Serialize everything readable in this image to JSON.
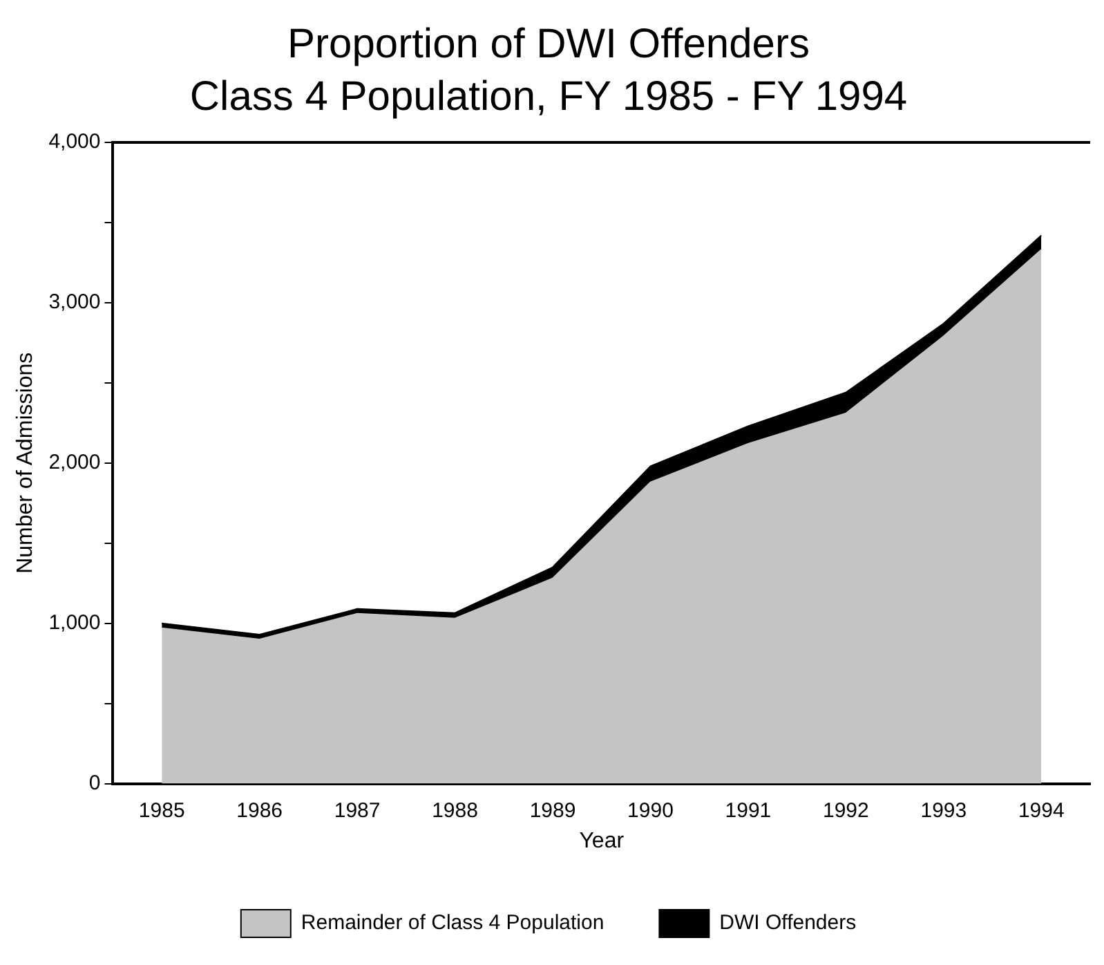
{
  "chart_data": {
    "type": "area",
    "title": "Proportion of DWI Offenders",
    "subtitle": "Class 4 Population, FY 1985 - FY 1994",
    "xlabel": "Year",
    "ylabel": "Number of Admissions",
    "categories": [
      "1985",
      "1986",
      "1987",
      "1988",
      "1989",
      "1990",
      "1991",
      "1992",
      "1993",
      "1994"
    ],
    "series": [
      {
        "name": "Remainder of Class 4 Population",
        "color": "#c4c4c4",
        "values": [
          970,
          900,
          1060,
          1030,
          1280,
          1880,
          2120,
          2310,
          2790,
          3330
        ]
      },
      {
        "name": "DWI Offenders",
        "color": "#000000",
        "values": [
          30,
          30,
          30,
          35,
          70,
          100,
          110,
          130,
          80,
          90
        ]
      }
    ],
    "stacked": true,
    "ylim": [
      0,
      4000
    ],
    "yticks": [
      0,
      {
        "value": 500,
        "label": null
      },
      {
        "value": 1000,
        "label": "1,000"
      },
      {
        "value": 1500,
        "label": null
      },
      {
        "value": 2000,
        "label": "2,000"
      },
      {
        "value": 2500,
        "label": null
      },
      {
        "value": 3000,
        "label": "3,000"
      },
      {
        "value": 3500,
        "label": null
      },
      {
        "value": 4000,
        "label": "4,000"
      }
    ],
    "grid": false,
    "legend": "bottom"
  }
}
